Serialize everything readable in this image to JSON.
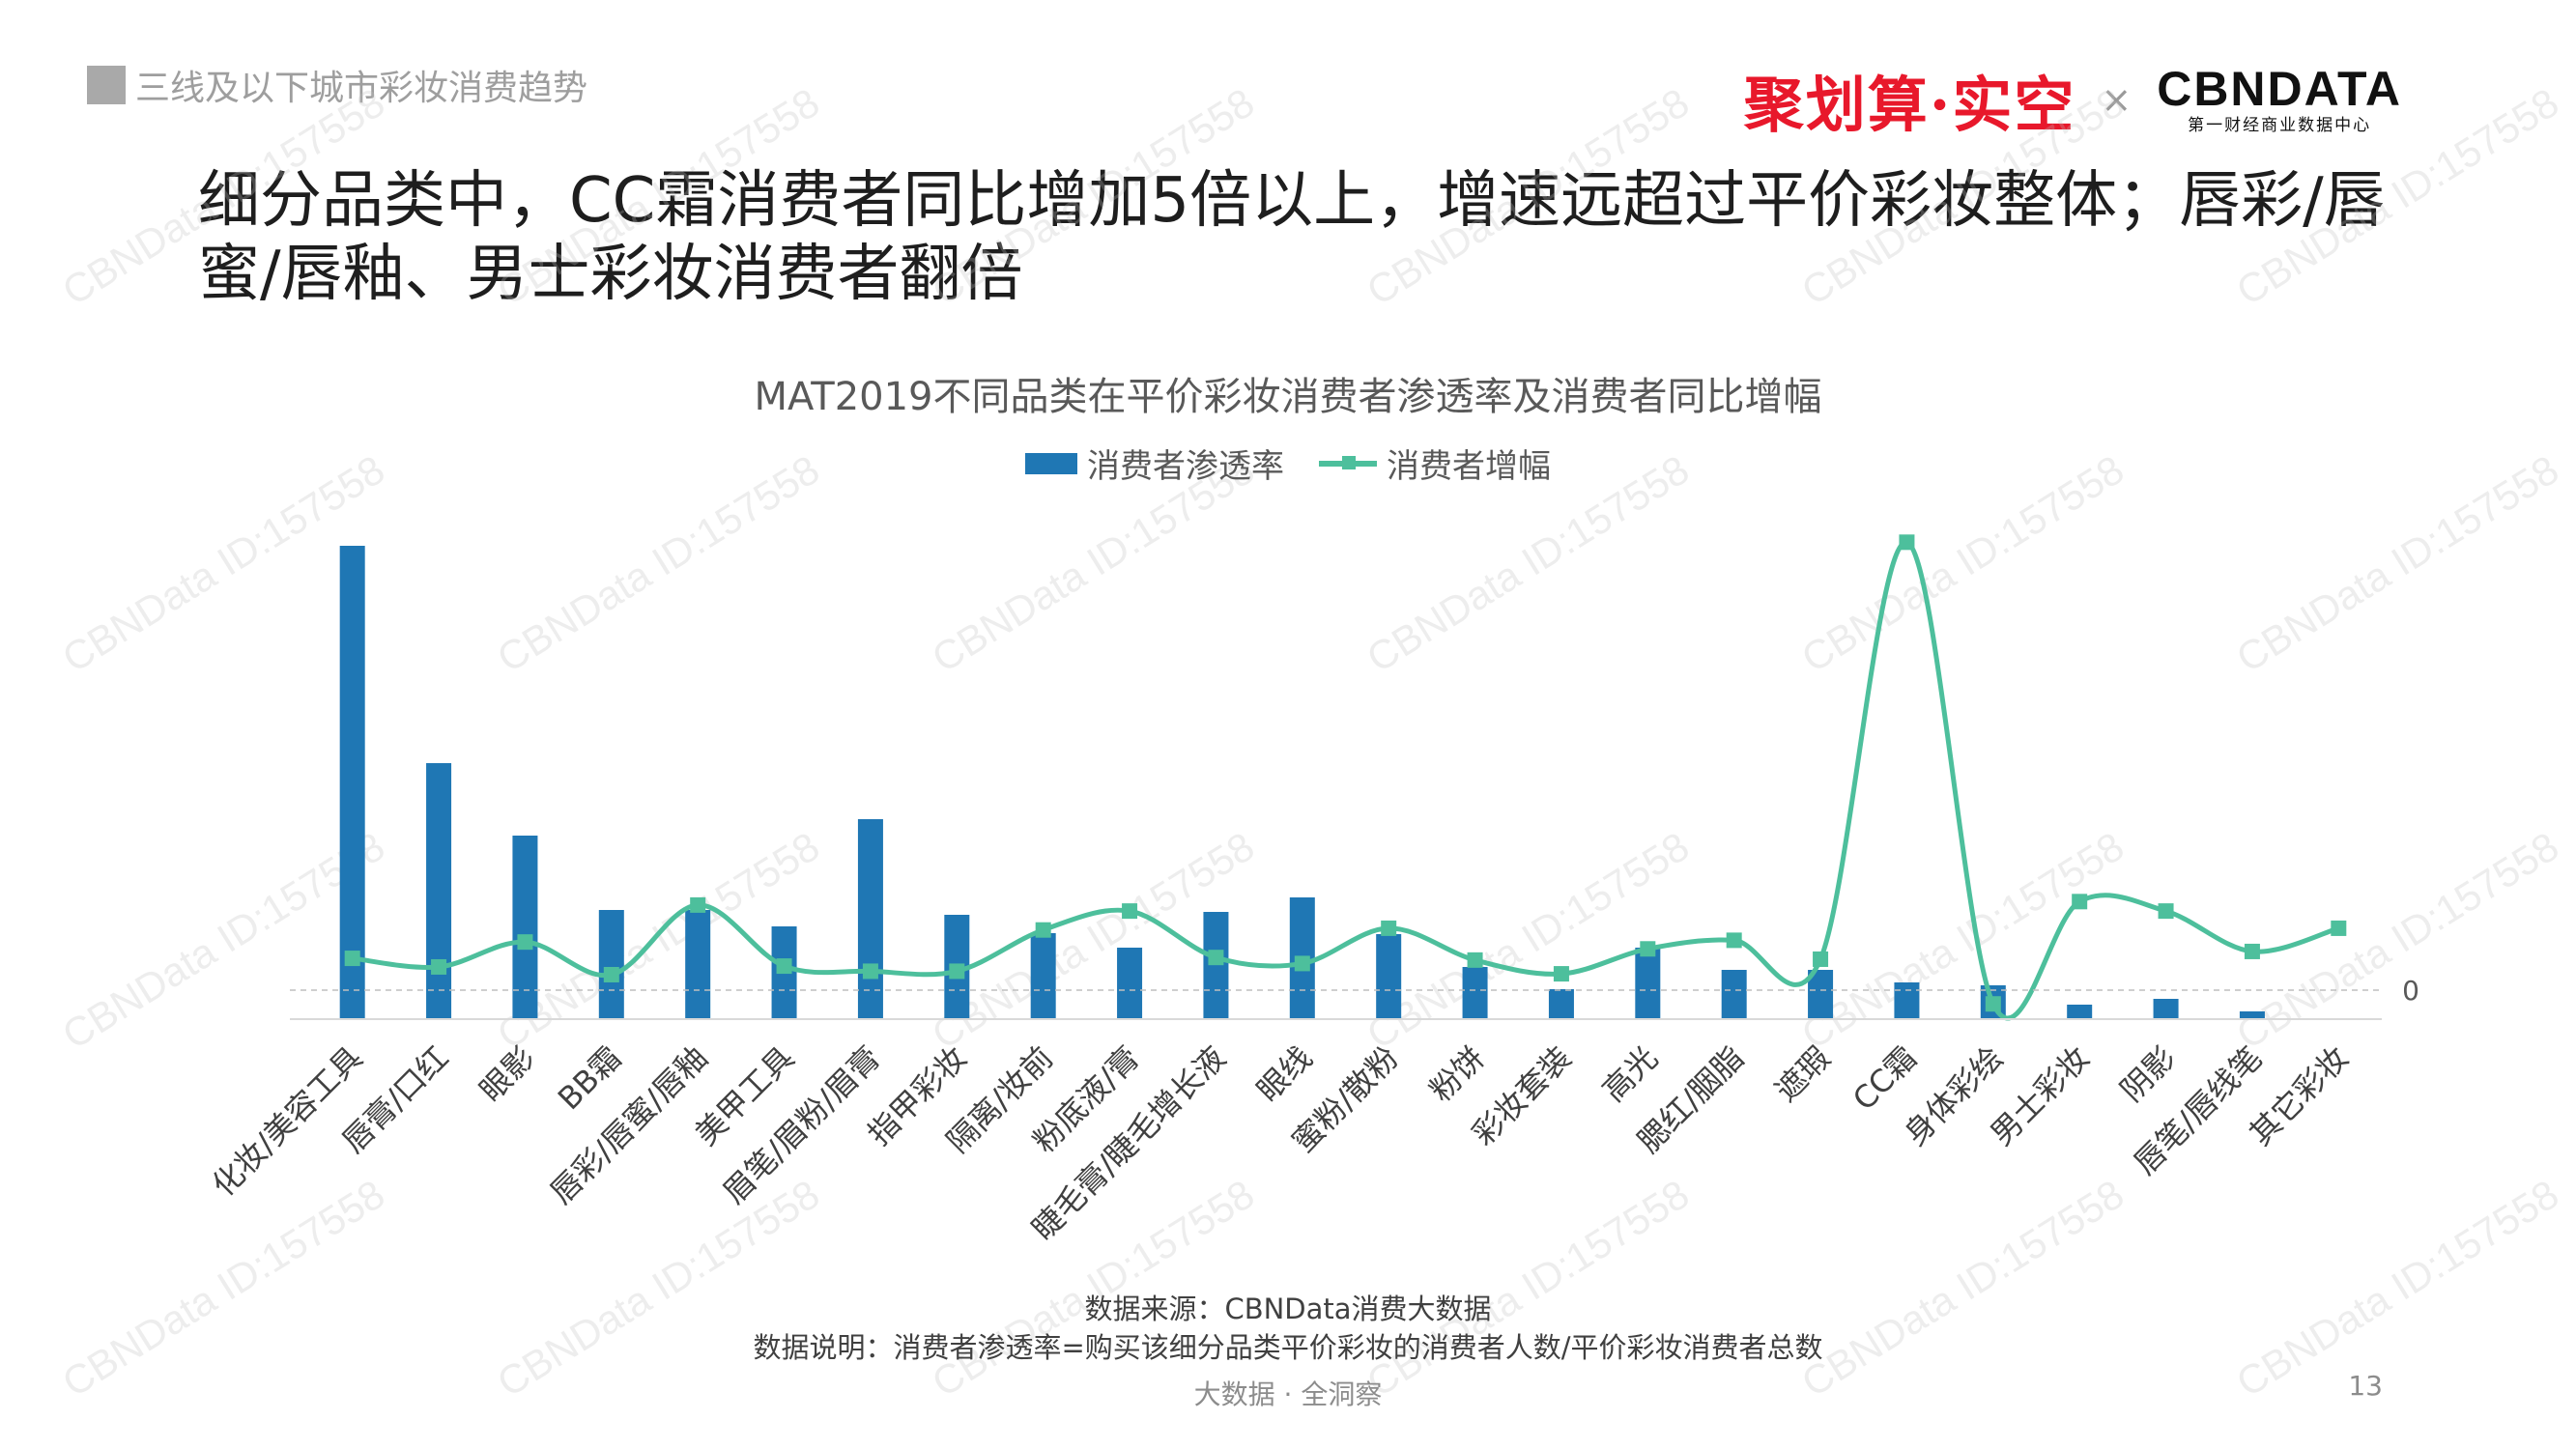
{
  "section": {
    "label": "三线及以下城市彩妆消费趋势"
  },
  "logos": {
    "juhuasuan": "聚划算·实空",
    "separator": "×",
    "cbndata": "CBNDATA",
    "cbndata_sub": "第一财经商业数据中心"
  },
  "headline": "细分品类中，CC霜消费者同比增加5倍以上，增速远超过平价彩妆整体；唇彩/唇蜜/唇釉、男士彩妆消费者翻倍",
  "watermark": "CBNData ID:157558",
  "colors": {
    "bar": "#1f77b4",
    "line": "#4dbf9c",
    "zero_line": "#bfbfbf",
    "axis": "#d9d9d9"
  },
  "chart_data": {
    "type": "bar+line",
    "title": "MAT2019不同品类在平价彩妆消费者渗透率及消费者同比增幅",
    "legend": [
      "消费者渗透率",
      "消费者增幅"
    ],
    "legend_position": "top",
    "categories": [
      "化妆/美容工具",
      "唇膏/口红",
      "眼影",
      "BB霜",
      "唇彩/唇蜜/唇釉",
      "美甲工具",
      "眉笔/眉粉/眉膏",
      "指甲彩妆",
      "隔离/妆前",
      "粉底液/膏",
      "睫毛膏/睫毛增长液",
      "眼线",
      "蜜粉/散粉",
      "粉饼",
      "彩妆套装",
      "高光",
      "腮红/胭脂",
      "遮瑕",
      "CC霜",
      "身体彩绘",
      "男士彩妆",
      "阴影",
      "唇笔/唇线笔",
      "其它彩妆"
    ],
    "series": [
      {
        "name": "消费者渗透率",
        "type": "bar",
        "values": [
          0.49,
          0.265,
          0.19,
          0.113,
          0.113,
          0.096,
          0.207,
          0.108,
          0.089,
          0.074,
          0.111,
          0.126,
          0.088,
          0.054,
          0.031,
          0.074,
          0.051,
          0.051,
          0.038,
          0.035,
          0.015,
          0.021,
          0.008,
          0.001
        ]
      },
      {
        "name": "消费者增幅",
        "type": "line",
        "values": [
          0.37,
          0.27,
          0.56,
          0.18,
          0.99,
          0.28,
          0.22,
          0.22,
          0.7,
          0.92,
          0.38,
          0.31,
          0.72,
          0.35,
          0.19,
          0.48,
          0.58,
          0.36,
          5.21,
          -0.16,
          1.03,
          0.92,
          0.45,
          0.72
        ]
      }
    ],
    "zero_label": "0",
    "grid": false
  },
  "footnotes": {
    "source": "数据来源：CBNData消费大数据",
    "note": "数据说明：消费者渗透率=购买该细分品类平价彩妆的消费者人数/平价彩妆消费者总数"
  },
  "footer": {
    "center": "大数据 · 全洞察",
    "page": "13"
  }
}
